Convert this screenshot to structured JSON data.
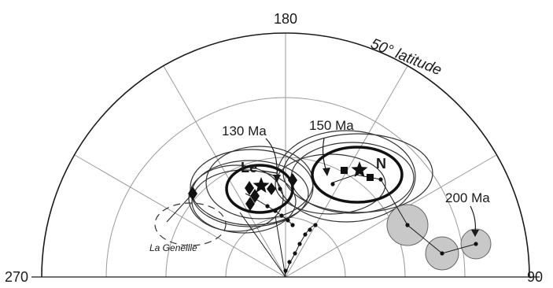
{
  "figure": {
    "azimuth_labels": {
      "top": "180",
      "left": "270",
      "right": "90"
    },
    "latitude_label": "50° latitude",
    "age_labels": {
      "a130": "130 Ma",
      "a150": "150 Ma",
      "a200": "200 Ma"
    },
    "pole_labels": {
      "le": "Le",
      "n": "N"
    },
    "site_label": "La Geneille"
  },
  "colors": {
    "line": "#1a1a1a",
    "grid": "#9a9a9a",
    "fill_circle": "#c8c8c8"
  }
}
